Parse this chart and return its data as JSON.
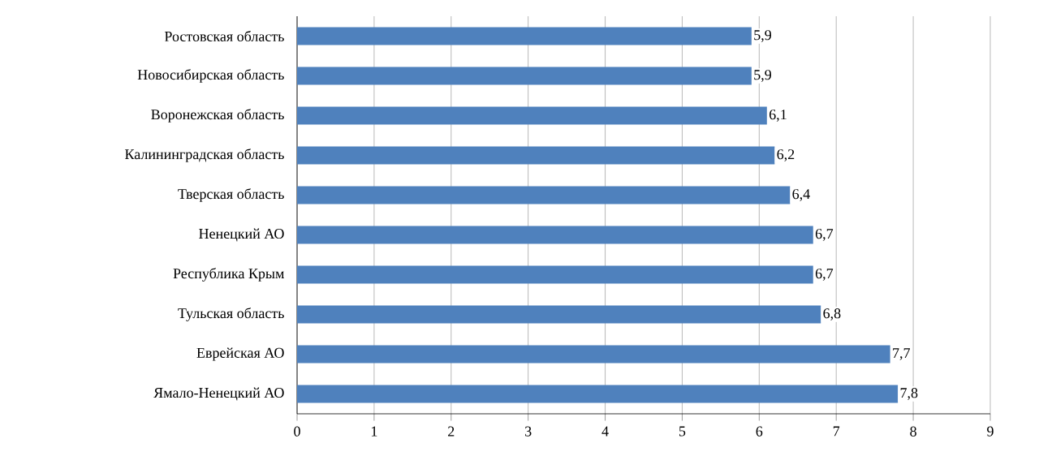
{
  "chart_data": {
    "type": "bar",
    "orientation": "horizontal",
    "categories": [
      "Ростовская область",
      "Новосибирская область",
      "Воронежская область",
      "Калининградская область",
      "Тверская область",
      "Ненецкий АО",
      "Республика Крым",
      "Тульская область",
      "Еврейская АО",
      "Ямало-Ненецкий АО"
    ],
    "values": [
      5.9,
      5.9,
      6.1,
      6.2,
      6.4,
      6.7,
      6.7,
      6.8,
      7.7,
      7.8
    ],
    "value_labels": [
      "5,9",
      "5,9",
      "6,1",
      "6,2",
      "6,4",
      "6,7",
      "6,7",
      "6,8",
      "7,7",
      "7,8"
    ],
    "color": "#4f81bd",
    "xlim": [
      0,
      9
    ],
    "xticks": [
      0,
      1,
      2,
      3,
      4,
      5,
      6,
      7,
      8,
      9
    ],
    "grid": "x"
  }
}
